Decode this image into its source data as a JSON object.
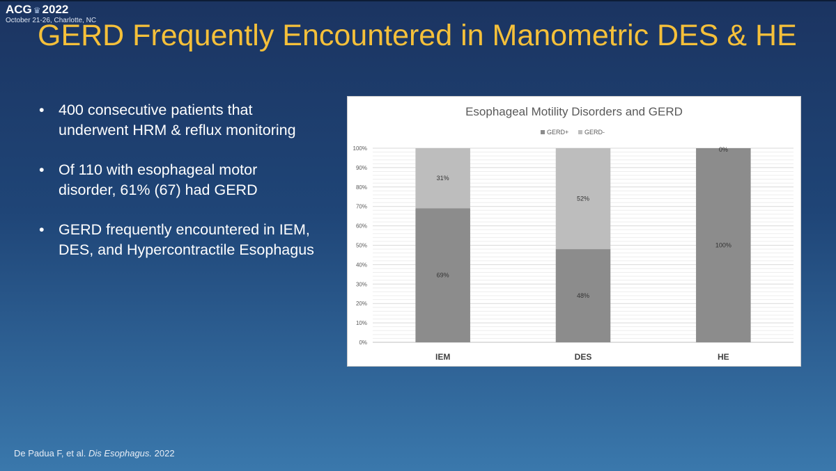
{
  "header": {
    "logo_text": "ACG",
    "logo_year": "2022",
    "conference_dates": "October 21-26, Charlotte, NC"
  },
  "slide": {
    "title": "GERD Frequently Encountered in Manometric DES & HE",
    "bullets": [
      "400 consecutive patients that underwent HRM & reflux monitoring",
      "Of 110 with esophageal motor disorder, 61% (67) had GERD",
      "GERD frequently encountered in IEM, DES, and Hypercontractile Esophagus"
    ],
    "citation": {
      "authors": "De Padua F, et al.",
      "journal": "Dis Esophagus.",
      "year": "2022"
    }
  },
  "chart_data": {
    "type": "bar",
    "stacked": true,
    "title": "Esophageal Motility Disorders and GERD",
    "categories": [
      "IEM",
      "DES",
      "HE"
    ],
    "series": [
      {
        "name": "GERD+",
        "values": [
          69,
          48,
          100
        ],
        "labels": [
          "69%",
          "48%",
          "100%"
        ],
        "color": "#8c8c8c"
      },
      {
        "name": "GERD-",
        "values": [
          31,
          52,
          0
        ],
        "labels": [
          "31%",
          "52%",
          "0%"
        ],
        "color": "#bdbdbd"
      }
    ],
    "xlabel": "",
    "ylabel": "",
    "ylim": [
      0,
      100
    ],
    "y_ticks": [
      "0%",
      "10%",
      "20%",
      "30%",
      "40%",
      "50%",
      "60%",
      "70%",
      "80%",
      "90%",
      "100%"
    ],
    "legend_position": "top-center",
    "grid": true
  }
}
